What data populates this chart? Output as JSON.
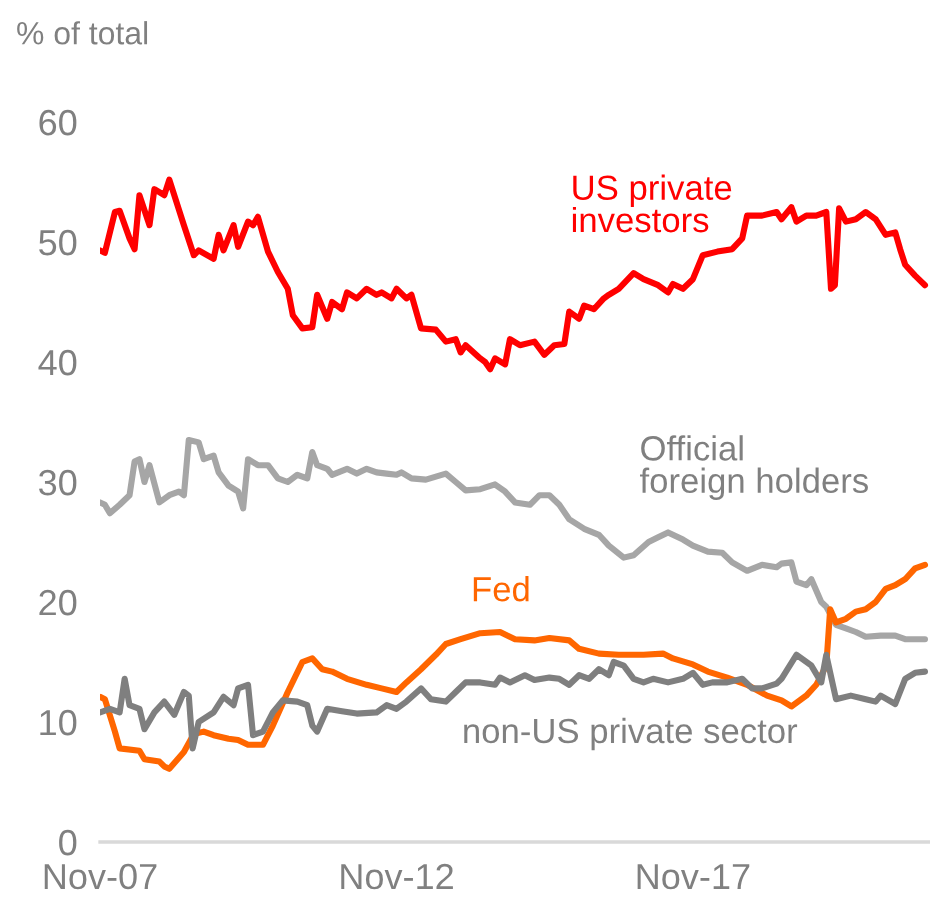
{
  "chart_data": {
    "type": "line",
    "ylabel": "% of total",
    "xlim": [
      "2007-11",
      "2021-11"
    ],
    "ylim": [
      0,
      60
    ],
    "xticks": [
      {
        "value": "2007-11",
        "label": "Nov-07"
      },
      {
        "value": "2012-11",
        "label": "Nov-12"
      },
      {
        "value": "2017-11",
        "label": "Nov-17"
      }
    ],
    "yticks": [
      0,
      10,
      20,
      30,
      40,
      50,
      60
    ],
    "grid": false,
    "legend": false,
    "marker": "none",
    "line_style": "solid",
    "series": [
      {
        "name": "US private investors",
        "color": "#ff0000",
        "x": [
          "2007-11",
          "2007-12",
          "2008-02",
          "2008-03",
          "2008-05",
          "2008-06",
          "2008-07",
          "2008-09",
          "2008-10",
          "2008-12",
          "2009-01",
          "2009-04",
          "2009-06",
          "2009-07",
          "2009-10",
          "2009-11",
          "2009-12",
          "2010-02",
          "2010-03",
          "2010-05",
          "2010-06",
          "2010-07",
          "2010-09",
          "2010-11",
          "2011-01",
          "2011-02",
          "2011-04",
          "2011-06",
          "2011-07",
          "2011-09",
          "2011-10",
          "2011-12",
          "2012-01",
          "2012-03",
          "2012-05",
          "2012-07",
          "2012-08",
          "2012-10",
          "2012-11",
          "2013-01",
          "2013-02",
          "2013-04",
          "2013-07",
          "2013-09",
          "2013-11",
          "2013-12",
          "2014-01",
          "2014-04",
          "2014-05",
          "2014-06",
          "2014-07",
          "2014-09",
          "2014-10",
          "2014-12",
          "2015-03",
          "2015-05",
          "2015-07",
          "2015-09",
          "2015-10",
          "2015-12",
          "2016-01",
          "2016-03",
          "2016-05",
          "2016-06",
          "2016-08",
          "2016-11",
          "2017-01",
          "2017-04",
          "2017-06",
          "2017-07",
          "2017-09",
          "2017-11",
          "2018-01",
          "2018-04",
          "2018-07",
          "2018-09",
          "2018-10",
          "2019-01",
          "2019-04",
          "2019-05",
          "2019-07",
          "2019-08",
          "2019-10",
          "2019-12",
          "2020-02-01",
          "2020-03-01",
          "2020-03-25",
          "2020-04-20",
          "2020-06",
          "2020-08",
          "2020-10",
          "2020-12",
          "2021-02",
          "2021-04",
          "2021-05",
          "2021-06",
          "2021-08",
          "2021-10"
        ],
        "values": [
          49.3,
          49.1,
          52.5,
          52.6,
          50.3,
          49.4,
          53.9,
          51.4,
          54.4,
          53.9,
          55.2,
          51.4,
          48.9,
          49.3,
          48.6,
          50.6,
          49.3,
          51.4,
          49.6,
          51.7,
          51.4,
          52.1,
          49.2,
          47.5,
          46.1,
          43.9,
          42.8,
          42.9,
          45.6,
          43.6,
          45.0,
          44.4,
          45.8,
          45.3,
          46.1,
          45.6,
          45.8,
          45.3,
          46.1,
          45.3,
          45.6,
          42.8,
          42.7,
          41.7,
          41.9,
          40.8,
          41.4,
          40.3,
          40.0,
          39.4,
          40.3,
          39.8,
          41.9,
          41.4,
          41.7,
          40.6,
          41.4,
          41.5,
          44.2,
          43.6,
          44.7,
          44.4,
          45.3,
          45.6,
          46.1,
          47.4,
          46.9,
          46.4,
          45.8,
          46.5,
          46.1,
          46.9,
          48.9,
          49.2,
          49.4,
          50.3,
          52.2,
          52.2,
          52.5,
          51.9,
          52.9,
          51.7,
          52.2,
          52.2,
          52.5,
          46.1,
          46.4,
          52.8,
          51.7,
          51.9,
          52.5,
          51.9,
          50.6,
          50.8,
          49.4,
          48.1,
          47.2,
          46.4
        ]
      },
      {
        "name": "Official  foreign holders",
        "color": "#a6a6a6",
        "x": [
          "2007-11",
          "2007-12",
          "2008-01",
          "2008-03",
          "2008-05",
          "2008-06",
          "2008-07",
          "2008-08",
          "2008-09",
          "2008-11",
          "2009-01",
          "2009-03",
          "2009-04",
          "2009-05",
          "2009-07",
          "2009-08",
          "2009-10",
          "2009-11",
          "2010-01",
          "2010-03",
          "2010-04",
          "2010-05",
          "2010-07",
          "2010-09",
          "2010-11",
          "2011-01",
          "2011-03",
          "2011-05",
          "2011-06",
          "2011-07",
          "2011-09",
          "2011-10",
          "2012-01",
          "2012-03",
          "2012-05",
          "2012-07",
          "2012-09",
          "2012-11",
          "2012-12",
          "2013-02",
          "2013-05",
          "2013-09",
          "2013-11",
          "2014-01",
          "2014-04",
          "2014-07",
          "2014-09",
          "2014-11",
          "2015-02",
          "2015-04",
          "2015-06",
          "2015-08",
          "2015-10",
          "2016-01",
          "2016-04",
          "2016-06",
          "2016-09",
          "2016-11",
          "2017-02",
          "2017-04",
          "2017-06",
          "2017-09",
          "2017-11",
          "2018-02",
          "2018-05",
          "2018-07",
          "2018-10",
          "2019-01",
          "2019-04",
          "2019-05",
          "2019-07",
          "2019-08",
          "2019-10",
          "2019-11",
          "2020-01",
          "2020-02",
          "2020-04",
          "2020-06",
          "2020-08",
          "2020-10",
          "2021-01",
          "2021-04",
          "2021-06",
          "2021-10"
        ],
        "values": [
          28.3,
          28.1,
          27.4,
          28.1,
          28.9,
          31.7,
          31.9,
          30.0,
          31.4,
          28.3,
          28.9,
          29.2,
          28.9,
          33.5,
          33.3,
          31.9,
          32.2,
          30.8,
          29.7,
          29.2,
          27.8,
          31.9,
          31.4,
          31.4,
          30.3,
          30.0,
          30.6,
          30.3,
          32.5,
          31.4,
          31.1,
          30.6,
          31.1,
          30.7,
          31.1,
          30.8,
          30.7,
          30.6,
          30.8,
          30.3,
          30.2,
          30.7,
          30.0,
          29.3,
          29.4,
          29.8,
          29.2,
          28.3,
          28.1,
          28.9,
          28.9,
          28.1,
          26.9,
          26.1,
          25.6,
          24.7,
          23.7,
          23.9,
          25.0,
          25.4,
          25.8,
          25.2,
          24.7,
          24.2,
          24.1,
          23.3,
          22.6,
          23.1,
          22.9,
          23.2,
          23.3,
          21.7,
          21.4,
          21.9,
          20.0,
          19.6,
          18.1,
          17.8,
          17.5,
          17.1,
          17.2,
          17.2,
          16.9,
          16.9
        ]
      },
      {
        "name": "Fed",
        "color": "#ff6600",
        "x": [
          "2007-11",
          "2007-12",
          "2008-02",
          "2008-03",
          "2008-07",
          "2008-08",
          "2008-11",
          "2008-12",
          "2009-01",
          "2009-04",
          "2009-06",
          "2009-08",
          "2009-10",
          "2010-01",
          "2010-03",
          "2010-05",
          "2010-08",
          "2010-10",
          "2011-01",
          "2011-04",
          "2011-06",
          "2011-08",
          "2011-10",
          "2012-01",
          "2012-05",
          "2012-08",
          "2012-11",
          "2013-01",
          "2013-04",
          "2013-07",
          "2013-09",
          "2013-12",
          "2014-04",
          "2014-08",
          "2014-11",
          "2015-03",
          "2015-06",
          "2015-10",
          "2015-12",
          "2016-04",
          "2016-08",
          "2017-01",
          "2017-05",
          "2017-07",
          "2017-11",
          "2018-02",
          "2018-06",
          "2018-10",
          "2019-02",
          "2019-05",
          "2019-07",
          "2019-10",
          "2019-12",
          "2020-02-01",
          "2020-02-25",
          "2020-04",
          "2020-06",
          "2020-08",
          "2020-10",
          "2020-12",
          "2021-02",
          "2021-04",
          "2021-06",
          "2021-08",
          "2021-10"
        ],
        "values": [
          12.1,
          11.9,
          9.2,
          7.8,
          7.6,
          6.9,
          6.7,
          6.3,
          6.1,
          7.5,
          9.0,
          9.2,
          8.9,
          8.6,
          8.5,
          8.1,
          8.1,
          9.7,
          12.5,
          15.0,
          15.3,
          14.4,
          14.2,
          13.6,
          13.1,
          12.8,
          12.5,
          13.3,
          14.4,
          15.6,
          16.5,
          16.9,
          17.4,
          17.5,
          16.9,
          16.8,
          17.0,
          16.8,
          16.1,
          15.7,
          15.6,
          15.6,
          15.7,
          15.3,
          14.8,
          14.2,
          13.7,
          13.1,
          12.2,
          11.8,
          11.3,
          12.2,
          13.1,
          14.7,
          19.4,
          18.3,
          18.6,
          19.2,
          19.4,
          20.0,
          21.1,
          21.4,
          21.9,
          22.8,
          23.1
        ]
      },
      {
        "name": "non-US private sector",
        "color": "#7f7f7f",
        "x": [
          "2007-11",
          "2008-01",
          "2008-03",
          "2008-04",
          "2008-05",
          "2008-07",
          "2008-08",
          "2008-10",
          "2008-12",
          "2009-02",
          "2009-04",
          "2009-05-01",
          "2009-05-25",
          "2009-07",
          "2009-10",
          "2009-12",
          "2010-02",
          "2010-03",
          "2010-05",
          "2010-06",
          "2010-08",
          "2010-10",
          "2010-12",
          "2011-03",
          "2011-05",
          "2011-06",
          "2011-07",
          "2011-09",
          "2011-12",
          "2012-03",
          "2012-07",
          "2012-09",
          "2012-11",
          "2013-01",
          "2013-04",
          "2013-06",
          "2013-09",
          "2013-11",
          "2014-01",
          "2014-04",
          "2014-07",
          "2014-08",
          "2014-10",
          "2015-01",
          "2015-03",
          "2015-06",
          "2015-08",
          "2015-10",
          "2015-12",
          "2016-02",
          "2016-04",
          "2016-06",
          "2016-07",
          "2016-09",
          "2016-11",
          "2017-01",
          "2017-03",
          "2017-06",
          "2017-09",
          "2017-11",
          "2018-01",
          "2018-03",
          "2018-06",
          "2018-09",
          "2018-11",
          "2019-01",
          "2019-04",
          "2019-05",
          "2019-08",
          "2019-11",
          "2020-01",
          "2020-02",
          "2020-04",
          "2020-07",
          "2020-10",
          "2020-12",
          "2021-01",
          "2021-04",
          "2021-06",
          "2021-08",
          "2021-10"
        ],
        "values": [
          10.8,
          11.1,
          10.8,
          13.6,
          11.4,
          11.1,
          9.4,
          10.8,
          11.7,
          10.6,
          12.5,
          12.2,
          7.8,
          10.0,
          10.8,
          12.1,
          11.4,
          12.8,
          13.1,
          8.9,
          9.2,
          10.8,
          11.8,
          11.7,
          11.4,
          9.7,
          9.2,
          11.1,
          10.9,
          10.7,
          10.8,
          11.4,
          11.1,
          11.7,
          12.8,
          11.9,
          11.7,
          12.5,
          13.3,
          13.3,
          13.1,
          13.7,
          13.3,
          13.9,
          13.5,
          13.7,
          13.6,
          13.1,
          13.9,
          13.6,
          14.4,
          13.9,
          15.0,
          14.7,
          13.6,
          13.3,
          13.6,
          13.3,
          13.6,
          14.1,
          13.1,
          13.3,
          13.3,
          13.6,
          12.8,
          12.8,
          13.2,
          13.6,
          15.6,
          14.7,
          13.3,
          15.6,
          11.9,
          12.2,
          11.9,
          11.7,
          12.2,
          11.5,
          13.6,
          14.1,
          14.2
        ]
      }
    ]
  }
}
